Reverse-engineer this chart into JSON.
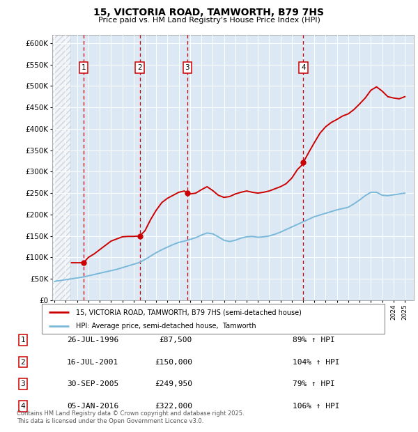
{
  "title_line1": "15, VICTORIA ROAD, TAMWORTH, B79 7HS",
  "title_line2": "Price paid vs. HM Land Registry's House Price Index (HPI)",
  "ylabel_ticks": [
    "£0",
    "£50K",
    "£100K",
    "£150K",
    "£200K",
    "£250K",
    "£300K",
    "£350K",
    "£400K",
    "£450K",
    "£500K",
    "£550K",
    "£600K"
  ],
  "ytick_values": [
    0,
    50000,
    100000,
    150000,
    200000,
    250000,
    300000,
    350000,
    400000,
    450000,
    500000,
    550000,
    600000
  ],
  "ylim": [
    0,
    620000
  ],
  "xlim_start": 1993.8,
  "xlim_end": 2025.8,
  "background_color": "#dce9f5",
  "hatch_region_end": 1995.4,
  "red_line_color": "#cc0000",
  "blue_line_color": "#7ab8d9",
  "transaction_dates": [
    1996.57,
    2001.54,
    2005.75,
    2016.02
  ],
  "transaction_prices": [
    87500,
    150000,
    249950,
    322000
  ],
  "transaction_labels": [
    "1",
    "2",
    "3",
    "4"
  ],
  "vline_color": "#cc0000",
  "legend_items": [
    "15, VICTORIA ROAD, TAMWORTH, B79 7HS (semi-detached house)",
    "HPI: Average price, semi-detached house,  Tamworth"
  ],
  "table_rows": [
    [
      "1",
      "26-JUL-1996",
      "£87,500",
      "89% ↑ HPI"
    ],
    [
      "2",
      "16-JUL-2001",
      "£150,000",
      "104% ↑ HPI"
    ],
    [
      "3",
      "30-SEP-2005",
      "£249,950",
      "79% ↑ HPI"
    ],
    [
      "4",
      "05-JAN-2016",
      "£322,000",
      "106% ↑ HPI"
    ]
  ],
  "footer_text": "Contains HM Land Registry data © Crown copyright and database right 2025.\nThis data is licensed under the Open Government Licence v3.0.",
  "hpi_x": [
    1994.0,
    1994.5,
    1995.0,
    1995.5,
    1996.0,
    1996.5,
    1997.0,
    1997.5,
    1998.0,
    1998.5,
    1999.0,
    1999.5,
    2000.0,
    2000.5,
    2001.0,
    2001.5,
    2002.0,
    2002.5,
    2003.0,
    2003.5,
    2004.0,
    2004.5,
    2005.0,
    2005.5,
    2006.0,
    2006.5,
    2007.0,
    2007.5,
    2008.0,
    2008.5,
    2009.0,
    2009.5,
    2010.0,
    2010.5,
    2011.0,
    2011.5,
    2012.0,
    2012.5,
    2013.0,
    2013.5,
    2014.0,
    2014.5,
    2015.0,
    2015.5,
    2016.0,
    2016.5,
    2017.0,
    2017.5,
    2018.0,
    2018.5,
    2019.0,
    2019.5,
    2020.0,
    2020.5,
    2021.0,
    2021.5,
    2022.0,
    2022.5,
    2023.0,
    2023.5,
    2024.0,
    2024.5,
    2025.0
  ],
  "hpi_y": [
    44000,
    46000,
    48000,
    50000,
    52000,
    54000,
    57000,
    60000,
    63000,
    66000,
    69000,
    72000,
    76000,
    80000,
    84000,
    88000,
    95000,
    103000,
    111000,
    118000,
    124000,
    130000,
    135000,
    138000,
    142000,
    146000,
    152000,
    157000,
    155000,
    148000,
    140000,
    137000,
    140000,
    145000,
    148000,
    149000,
    147000,
    148000,
    150000,
    154000,
    159000,
    165000,
    171000,
    177000,
    183000,
    189000,
    195000,
    199000,
    203000,
    207000,
    211000,
    214000,
    217000,
    225000,
    234000,
    244000,
    252000,
    252000,
    245000,
    244000,
    246000,
    248000,
    250000
  ],
  "red_x": [
    1995.5,
    1996.0,
    1996.57,
    1997.0,
    1997.5,
    1998.0,
    1998.5,
    1999.0,
    1999.5,
    2000.0,
    2000.5,
    2001.0,
    2001.54,
    2002.0,
    2002.5,
    2003.0,
    2003.5,
    2004.0,
    2004.5,
    2005.0,
    2005.5,
    2005.75,
    2006.0,
    2006.5,
    2007.0,
    2007.5,
    2008.0,
    2008.5,
    2009.0,
    2009.5,
    2010.0,
    2010.5,
    2011.0,
    2011.5,
    2012.0,
    2012.5,
    2013.0,
    2013.5,
    2014.0,
    2014.5,
    2015.0,
    2015.5,
    2016.0,
    2016.02,
    2016.5,
    2017.0,
    2017.5,
    2018.0,
    2018.5,
    2019.0,
    2019.5,
    2020.0,
    2020.5,
    2021.0,
    2021.5,
    2022.0,
    2022.5,
    2023.0,
    2023.5,
    2024.0,
    2024.5,
    2025.0
  ],
  "red_y": [
    87500,
    87500,
    87500,
    100000,
    108000,
    118000,
    128000,
    138000,
    143000,
    148000,
    149000,
    149000,
    150000,
    162000,
    188000,
    210000,
    228000,
    238000,
    245000,
    252000,
    255000,
    249950,
    248000,
    250000,
    258000,
    265000,
    256000,
    245000,
    240000,
    242000,
    248000,
    252000,
    255000,
    252000,
    250000,
    252000,
    255000,
    260000,
    265000,
    272000,
    285000,
    305000,
    318000,
    322000,
    345000,
    368000,
    390000,
    405000,
    415000,
    422000,
    430000,
    435000,
    445000,
    458000,
    472000,
    490000,
    498000,
    488000,
    475000,
    472000,
    470000,
    475000
  ]
}
